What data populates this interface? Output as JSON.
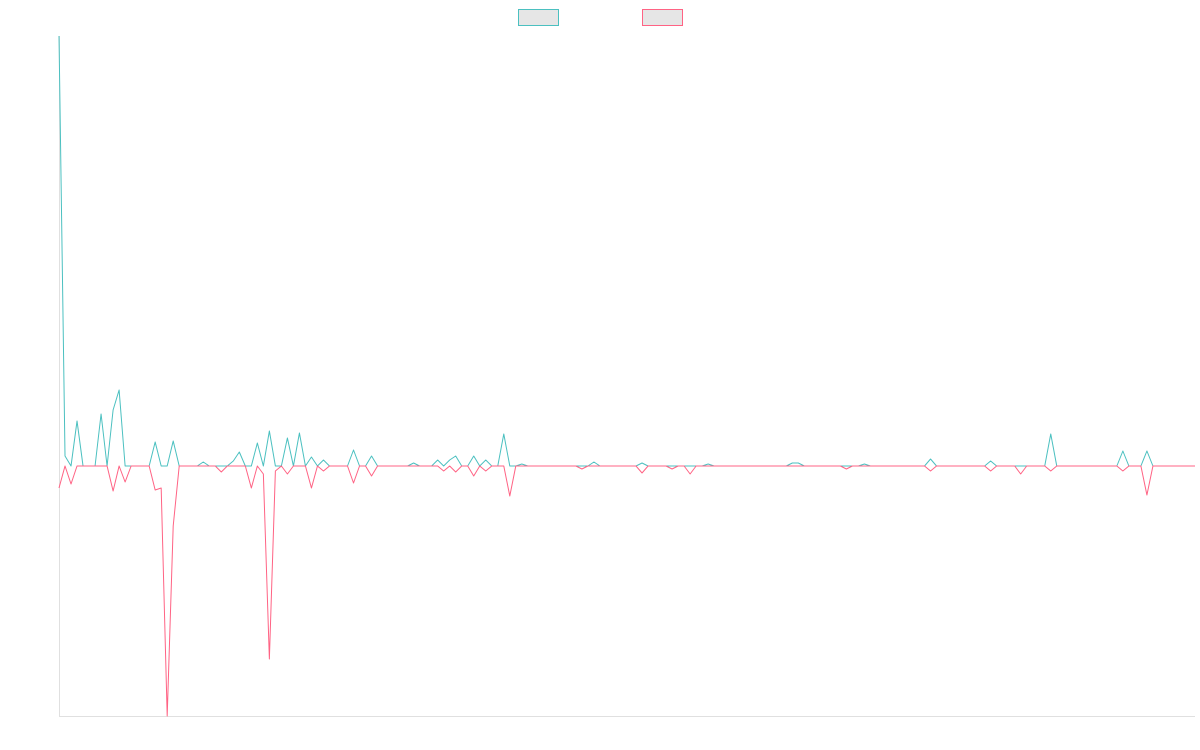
{
  "chart_data": {
    "type": "line",
    "ylim": [
      -250,
      430
    ],
    "legend": "top",
    "series": [
      {
        "color": "#4bc0c0",
        "values": [
          430,
          10,
          0,
          45,
          0,
          0,
          0,
          52,
          0,
          56,
          76,
          0,
          0,
          0,
          0,
          0,
          24,
          0,
          0,
          25,
          0,
          0,
          0,
          0,
          4,
          0,
          0,
          0,
          0,
          5,
          14,
          0,
          0,
          23,
          0,
          35,
          0,
          0,
          28,
          0,
          33,
          0,
          9,
          0,
          6,
          0,
          0,
          0,
          0,
          16,
          0,
          0,
          10,
          0,
          0,
          0,
          0,
          0,
          0,
          3,
          0,
          0,
          0,
          6,
          0,
          6,
          10,
          0,
          0,
          10,
          0,
          6,
          0,
          0,
          32,
          0,
          0,
          2,
          0,
          0,
          0,
          0,
          0,
          0,
          0,
          0,
          0,
          0,
          0,
          4,
          0,
          0,
          0,
          0,
          0,
          0,
          0,
          3,
          0,
          0,
          0,
          0,
          0,
          0,
          0,
          0,
          0,
          0,
          2,
          0,
          0,
          0,
          0,
          0,
          0,
          0,
          0,
          0,
          0,
          0,
          0,
          0,
          3,
          3,
          0,
          0,
          0,
          0,
          0,
          0,
          0,
          0,
          0,
          0,
          2,
          0,
          0,
          0,
          0,
          0,
          0,
          0,
          0,
          0,
          0,
          7,
          0,
          0,
          0,
          0,
          0,
          0,
          0,
          0,
          0,
          5,
          0,
          0,
          0,
          0,
          0,
          0,
          0,
          0,
          0,
          32,
          0,
          0,
          0,
          0,
          0,
          0,
          0,
          0,
          0,
          0,
          0,
          15,
          0,
          0,
          0,
          15,
          0,
          0,
          0,
          0,
          0,
          0,
          0,
          0
        ]
      },
      {
        "color": "#ff6384",
        "values": [
          -22,
          0,
          -18,
          0,
          0,
          0,
          0,
          0,
          0,
          -25,
          0,
          -16,
          0,
          0,
          0,
          0,
          -24,
          -22,
          -250,
          -60,
          0,
          0,
          0,
          0,
          0,
          0,
          0,
          -6,
          0,
          0,
          0,
          0,
          -22,
          0,
          -8,
          -193,
          -5,
          0,
          -8,
          0,
          0,
          0,
          -22,
          0,
          -5,
          0,
          0,
          0,
          0,
          -17,
          0,
          0,
          -10,
          0,
          0,
          0,
          0,
          0,
          0,
          0,
          0,
          0,
          0,
          0,
          -5,
          0,
          -6,
          0,
          0,
          -10,
          0,
          -5,
          0,
          0,
          0,
          -30,
          0,
          0,
          0,
          0,
          0,
          0,
          0,
          0,
          0,
          0,
          0,
          -3,
          0,
          0,
          0,
          0,
          0,
          0,
          0,
          0,
          0,
          -7,
          0,
          0,
          0,
          0,
          -3,
          0,
          0,
          -8,
          0,
          0,
          0,
          0,
          0,
          0,
          0,
          0,
          0,
          0,
          0,
          0,
          0,
          0,
          0,
          0,
          0,
          0,
          0,
          0,
          0,
          0,
          0,
          0,
          0,
          -3,
          0,
          0,
          0,
          0,
          0,
          0,
          0,
          0,
          0,
          0,
          0,
          0,
          0,
          -5,
          0,
          0,
          0,
          0,
          0,
          0,
          0,
          0,
          0,
          -5,
          0,
          0,
          0,
          0,
          -8,
          0,
          0,
          0,
          0,
          -5,
          0,
          0,
          0,
          0,
          0,
          0,
          0,
          0,
          0,
          0,
          0,
          -5,
          0,
          0,
          0,
          -29,
          0,
          0,
          0,
          0,
          0,
          0,
          0,
          0
        ]
      }
    ]
  }
}
